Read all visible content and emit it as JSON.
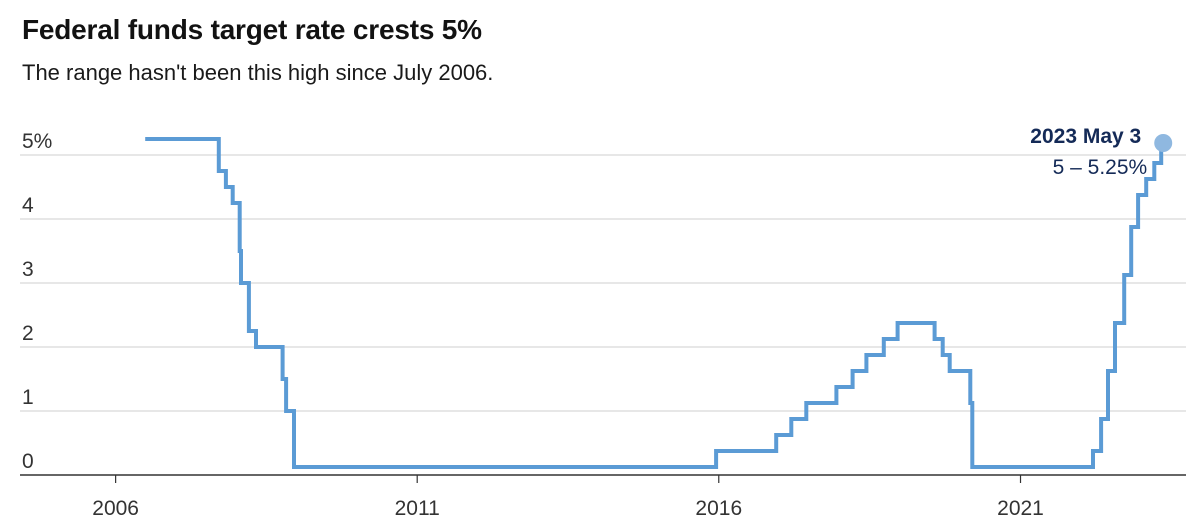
{
  "title": "Federal funds target rate crests 5%",
  "subtitle": "The range hasn't been this high since July 2006.",
  "colors": {
    "line": "#5b9bd5",
    "dot": "#8fb8e0",
    "annotation": "#142a57",
    "grid": "#cfcfcf",
    "axis": "#333333"
  },
  "chart_data": {
    "type": "line",
    "step": true,
    "title": "Federal funds target rate crests 5%",
    "subtitle": "The range hasn't been this high since July 2006.",
    "xlabel": "",
    "ylabel": "",
    "xlim": [
      "2004-06-01",
      "2023-09-30"
    ],
    "ylim": [
      0,
      5.25
    ],
    "y_ticks": [
      0,
      1,
      2,
      3,
      4,
      5
    ],
    "y_tick_labels": [
      "0",
      "1",
      "2",
      "3",
      "4",
      "5%"
    ],
    "x_ticks": [
      "2006",
      "2011",
      "2016",
      "2021"
    ],
    "grid": true,
    "series": [
      {
        "points": [
          [
            "2006-06-29",
            5.25
          ],
          [
            "2007-09-18",
            4.75
          ],
          [
            "2007-10-31",
            4.5
          ],
          [
            "2007-12-11",
            4.25
          ],
          [
            "2008-01-22",
            3.5
          ],
          [
            "2008-01-30",
            3.0
          ],
          [
            "2008-03-18",
            2.25
          ],
          [
            "2008-04-30",
            2.0
          ],
          [
            "2008-10-08",
            1.5
          ],
          [
            "2008-10-29",
            1.0
          ],
          [
            "2008-12-16",
            0.125
          ],
          [
            "2015-12-16",
            0.375
          ],
          [
            "2016-12-14",
            0.625
          ],
          [
            "2017-03-15",
            0.875
          ],
          [
            "2017-06-14",
            1.125
          ],
          [
            "2017-12-13",
            1.375
          ],
          [
            "2018-03-21",
            1.625
          ],
          [
            "2018-06-13",
            1.875
          ],
          [
            "2018-09-26",
            2.125
          ],
          [
            "2018-12-19",
            2.375
          ],
          [
            "2019-07-31",
            2.125
          ],
          [
            "2019-09-18",
            1.875
          ],
          [
            "2019-10-30",
            1.625
          ],
          [
            "2020-03-03",
            1.125
          ],
          [
            "2020-03-15",
            0.125
          ],
          [
            "2022-03-16",
            0.375
          ],
          [
            "2022-05-04",
            0.875
          ],
          [
            "2022-06-15",
            1.625
          ],
          [
            "2022-07-27",
            2.375
          ],
          [
            "2022-09-21",
            3.125
          ],
          [
            "2022-11-02",
            3.875
          ],
          [
            "2022-12-14",
            4.375
          ],
          [
            "2023-02-01",
            4.625
          ],
          [
            "2023-03-22",
            4.875
          ],
          [
            "2023-05-03",
            5.125
          ]
        ]
      }
    ],
    "annotation": {
      "date": "2023-05-03",
      "value": 5.125,
      "label_date": "2023 May 3",
      "label_value": "5 – 5.25%"
    }
  }
}
